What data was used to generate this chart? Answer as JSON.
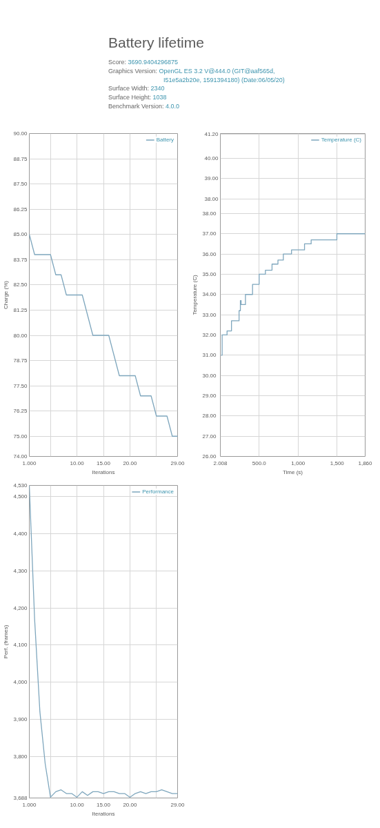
{
  "chart_data": [
    {
      "type": "line",
      "title": "Battery lifetime",
      "annotations": [
        "Score: 3690.9404296875",
        "Graphics Version: OpenGL ES 3.2 V@444.0 (GIT@aaf565d, I51e5a2b20e, 1591394180) (Date:06/05/20)",
        "Surface Width: 2340",
        "Surface Height: 1038",
        "Benchmark Version: 4.0.0"
      ],
      "xlabel": "Iterations",
      "ylabel": "Charge (%)",
      "x": [
        1,
        2,
        3,
        4,
        5,
        6,
        7,
        8,
        9,
        10,
        11,
        12,
        13,
        14,
        15,
        16,
        17,
        18,
        19,
        20,
        21,
        22,
        23,
        24,
        25,
        26,
        27,
        28,
        29
      ],
      "series": [
        {
          "name": "Battery",
          "color": "#7ea6bd",
          "values": [
            85,
            84,
            84,
            84,
            84,
            83,
            83,
            82,
            82,
            82,
            82,
            81,
            80,
            80,
            80,
            80,
            79,
            78,
            78,
            78,
            78,
            77,
            77,
            77,
            76,
            76,
            76,
            75,
            75
          ]
        }
      ],
      "xlim": [
        1,
        29
      ],
      "xticks": [
        {
          "value": 1,
          "label": "1.000"
        },
        {
          "value": 5,
          "label": null
        },
        {
          "value": 10,
          "label": "10.00"
        },
        {
          "value": 15,
          "label": "15.00"
        },
        {
          "value": 20,
          "label": "20.00"
        },
        {
          "value": 25,
          "label": null
        },
        {
          "value": 29,
          "label": "29.00"
        }
      ],
      "ylim": [
        74,
        90
      ],
      "yticks": [
        {
          "value": 74,
          "label": "74.00"
        },
        {
          "value": 75,
          "label": "75.00"
        },
        76.25,
        {
          "value": 77.5,
          "label": "77.50"
        },
        78.75,
        {
          "value": 80,
          "label": "80.00"
        },
        81.25,
        {
          "value": 82.5,
          "label": "82.50"
        },
        83.75,
        {
          "value": 85,
          "label": "85.00"
        },
        86.25,
        {
          "value": 87.5,
          "label": "87.50"
        },
        88.75,
        {
          "value": 90,
          "label": "90.00"
        }
      ],
      "grid": true,
      "legend": "top right"
    },
    {
      "type": "step",
      "xlabel": "Time (s)",
      "ylabel": "Temperature (C)",
      "x": [
        11,
        25,
        88,
        145,
        242,
        259,
        268,
        324,
        415,
        500,
        580,
        665,
        741,
        810,
        915,
        1082,
        1167,
        1497,
        1860
      ],
      "series": [
        {
          "name": "Temperature (C)",
          "color": "#7ea6bd",
          "values": [
            31.0,
            32.0,
            32.2,
            32.7,
            33.2,
            33.7,
            33.5,
            34.0,
            34.5,
            35.0,
            35.2,
            35.5,
            35.7,
            36.0,
            36.2,
            36.5,
            36.7,
            37.0,
            37.0
          ]
        }
      ],
      "xlim": [
        2.008,
        1860
      ],
      "xticks": [
        2.008,
        {
          "value": 500,
          "label": "500.0"
        },
        {
          "value": 1000,
          "label": "1,000"
        },
        {
          "value": 1500,
          "label": "1,500"
        },
        {
          "value": 1860,
          "label": "1,860"
        }
      ],
      "ylim": [
        26,
        41.95
      ],
      "yticks": [
        {
          "value": 26,
          "label": "26.00"
        },
        {
          "value": 27,
          "label": "27.00"
        },
        {
          "value": 28,
          "label": "28.00"
        },
        {
          "value": 29,
          "label": "29.00"
        },
        {
          "value": 30,
          "label": "30.00"
        },
        {
          "value": 31,
          "label": "31.00"
        },
        {
          "value": 32,
          "label": "32.00"
        },
        {
          "value": 33,
          "label": "33.00"
        },
        {
          "value": 34,
          "label": "34.00"
        },
        {
          "value": 35,
          "label": "35.00"
        },
        {
          "value": 36,
          "label": "36.00"
        },
        {
          "value": 37,
          "label": "37.00"
        },
        {
          "value": 38,
          "label": "38.00"
        }
      ],
      "y2lim": [
        25.28,
        41.23
      ],
      "y2ticks": [
        {
          "value": 38,
          "label": "38.00"
        },
        {
          "value": 39,
          "label": "39.00"
        },
        {
          "value": 40,
          "label": "40.00"
        },
        {
          "value": 41.2,
          "label": "41.20"
        }
      ],
      "grid": true,
      "legend": "top right"
    },
    {
      "type": "line",
      "xlabel": "Iterations",
      "ylabel": "Perf. (frames)",
      "x": [
        1,
        2,
        3,
        4,
        5,
        6,
        7,
        8,
        9,
        10,
        11,
        12,
        13,
        14,
        15,
        16,
        17,
        18,
        19,
        20,
        21,
        22,
        23,
        24,
        25,
        26,
        27,
        28,
        29
      ],
      "series": [
        {
          "name": "Performance",
          "color": "#7ea6bd",
          "values": [
            4530,
            4170,
            3920,
            3780,
            3690,
            3705,
            3710,
            3700,
            3700,
            3690,
            3705,
            3695,
            3705,
            3705,
            3700,
            3705,
            3705,
            3700,
            3700,
            3690,
            3700,
            3705,
            3700,
            3705,
            3705,
            3710,
            3705,
            3700,
            3700
          ]
        }
      ],
      "xlim": [
        1,
        29
      ],
      "xticks": [
        {
          "value": 1,
          "label": "1.000"
        },
        {
          "value": 5,
          "label": null
        },
        {
          "value": 10,
          "label": "10.00"
        },
        {
          "value": 15,
          "label": "15.00"
        },
        {
          "value": 20,
          "label": "20.00"
        },
        {
          "value": 25,
          "label": null
        },
        {
          "value": 29,
          "label": "29.00"
        }
      ],
      "ylim": [
        3688,
        4530
      ],
      "yticks": [
        {
          "value": 3688,
          "label": "3,688"
        },
        {
          "value": 3800,
          "label": "3,800"
        },
        {
          "value": 3900,
          "label": "3,900"
        },
        {
          "value": 4000,
          "label": "4,000"
        },
        {
          "value": 4100,
          "label": "4,100"
        },
        {
          "value": 4200,
          "label": "4,200"
        },
        {
          "value": 4300,
          "label": "4,300"
        },
        {
          "value": 4400,
          "label": "4,400"
        },
        {
          "value": 4500,
          "label": "4,500"
        },
        {
          "value": 4530,
          "label": "4,530"
        }
      ],
      "grid": true,
      "legend": "top right"
    }
  ]
}
